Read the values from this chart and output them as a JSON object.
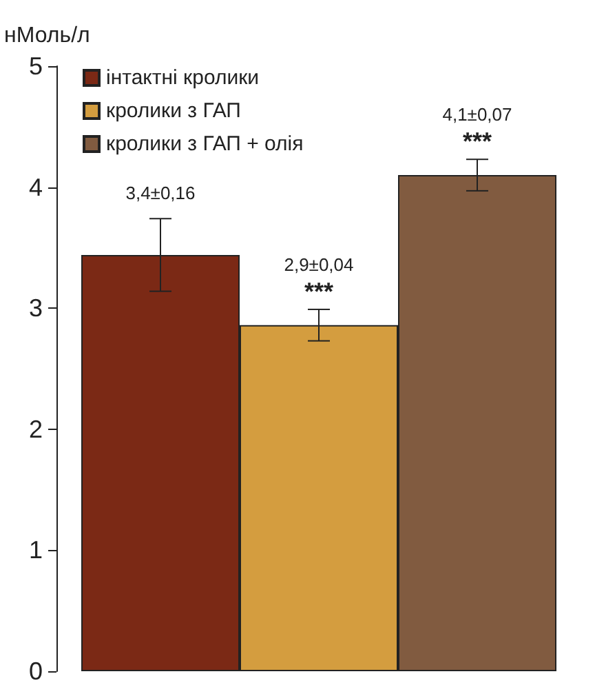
{
  "chart_data": {
    "type": "bar",
    "ylabel": "нМоль/л",
    "categories": [
      null
    ],
    "series": [
      {
        "name": "інтактні кролики",
        "color": "#7b2915",
        "values": [
          3.44
        ],
        "errors": [
          0.3
        ],
        "value_labels": [
          "3,4±0,16"
        ]
      },
      {
        "name": "кролики з ГАП",
        "color": "#d49d3f",
        "values": [
          2.86
        ],
        "errors": [
          0.13
        ],
        "value_labels": [
          "2,9±0,04"
        ]
      },
      {
        "name": "кролики з ГАП + олія",
        "color": "#815b40",
        "values": [
          4.1
        ],
        "errors": [
          0.13
        ],
        "value_labels": [
          "4,1±0,07"
        ]
      }
    ],
    "annotations": [
      "***",
      "***"
    ],
    "ylim": [
      0,
      5
    ],
    "yticks": [
      0,
      1,
      2,
      3,
      4,
      5
    ],
    "grid": false,
    "legend": "top left"
  }
}
